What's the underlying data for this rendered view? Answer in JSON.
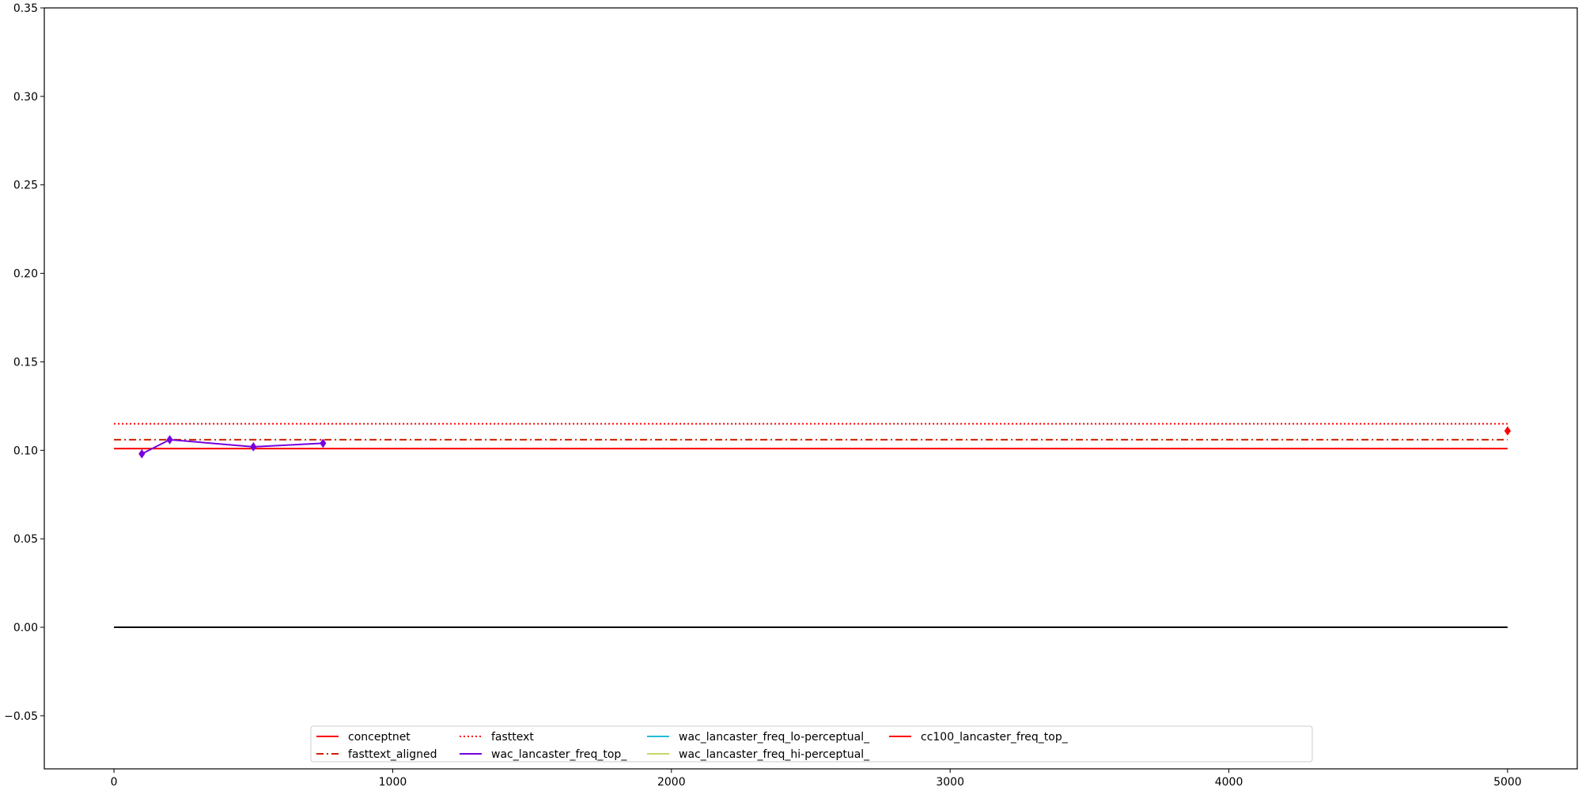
{
  "chart_data": {
    "type": "line",
    "title": "",
    "xlabel": "",
    "ylabel": "",
    "xlim": [
      -250,
      5250
    ],
    "ylim": [
      -0.08,
      0.35
    ],
    "x_ticks": [
      0,
      1000,
      2000,
      3000,
      4000,
      5000
    ],
    "x_tick_labels": [
      "0",
      "1000",
      "2000",
      "3000",
      "4000",
      "5000"
    ],
    "y_ticks": [
      -0.05,
      0.0,
      0.05,
      0.1,
      0.15,
      0.2,
      0.25,
      0.3,
      0.35
    ],
    "y_tick_labels": [
      "−0.05",
      "0.00",
      "0.05",
      "0.10",
      "0.15",
      "0.20",
      "0.25",
      "0.30",
      "0.35"
    ],
    "grid": false,
    "legend_position": "lower center",
    "legend_columns": 5,
    "horizontal_lines": [
      {
        "name": "conceptnet",
        "y": 0.101,
        "x_range": [
          0,
          5000
        ],
        "color": "#ff0000",
        "style": "solid"
      },
      {
        "name": "fasttext_aligned",
        "y": 0.106,
        "x_range": [
          0,
          5000
        ],
        "color": "#cc2200",
        "style": "dashdot"
      },
      {
        "name": "fasttext",
        "y": 0.115,
        "x_range": [
          0,
          5000
        ],
        "color": "#ff0000",
        "style": "dotted"
      },
      {
        "name": "",
        "y": 0.0,
        "x_range": [
          0,
          5000
        ],
        "color": "#000000",
        "style": "solid"
      }
    ],
    "series": [
      {
        "name": "wac_lancaster_freq_top_",
        "color": "#7700dd",
        "marker": "diamond",
        "x": [
          100,
          200,
          500,
          750
        ],
        "y": [
          0.098,
          0.106,
          0.102,
          0.104
        ]
      },
      {
        "name": "wac_lancaster_freq_lo-perceptual_",
        "color": "#22bbdd",
        "marker": "diamond",
        "x": [],
        "y": []
      },
      {
        "name": "wac_lancaster_freq_hi-perceptual_",
        "color": "#c8d66a",
        "marker": "diamond",
        "x": [],
        "y": []
      },
      {
        "name": "cc100_lancaster_freq_top_",
        "color": "#ff0000",
        "marker": "diamond",
        "x": [
          5000
        ],
        "y": [
          0.111
        ]
      }
    ],
    "legend": [
      {
        "label": "conceptnet",
        "color": "#ff0000",
        "style": "solid"
      },
      {
        "label": "fasttext_aligned",
        "color": "#cc2200",
        "style": "dashdot"
      },
      {
        "label": "fasttext",
        "color": "#ff0000",
        "style": "dotted"
      },
      {
        "label": "wac_lancaster_freq_top_",
        "color": "#7700dd",
        "style": "solid"
      },
      {
        "label": "wac_lancaster_freq_lo-perceptual_",
        "color": "#22bbdd",
        "style": "solid"
      },
      {
        "label": "wac_lancaster_freq_hi-perceptual_",
        "color": "#c8d66a",
        "style": "solid"
      },
      {
        "label": "cc100_lancaster_freq_top_",
        "color": "#ff0000",
        "style": "solid"
      }
    ]
  }
}
